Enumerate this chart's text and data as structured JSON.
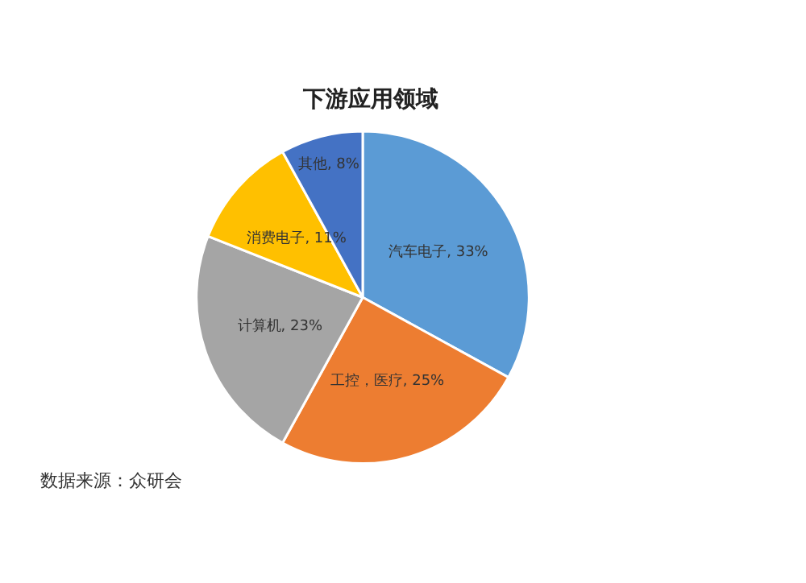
{
  "chart_data": {
    "type": "pie",
    "title": "下游应用领域",
    "categories": [
      "汽车电子",
      "工控，医疗",
      "计算机",
      "消费电子",
      "其他"
    ],
    "values": [
      33,
      25,
      23,
      11,
      8
    ],
    "value_labels": [
      "33%",
      "25%",
      "23%",
      "11%",
      "8%"
    ],
    "colors": [
      "#5b9bd5",
      "#ed7d31",
      "#a5a5a5",
      "#ffc000",
      "#4472c4"
    ],
    "legend": false,
    "annotations": [
      "数据来源：众研会"
    ]
  }
}
